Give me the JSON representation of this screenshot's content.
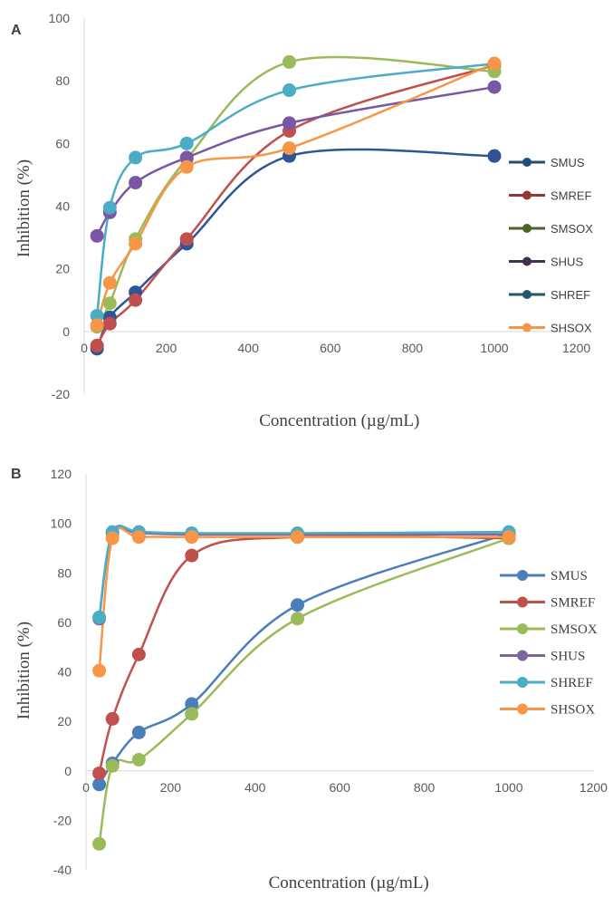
{
  "chart_data": [
    {
      "panel": "A",
      "type": "line",
      "xlabel": "Concentration (µg/mL)",
      "ylabel": "Inhibition (%)",
      "xlim": [
        0,
        1200
      ],
      "ylim": [
        -20,
        100
      ],
      "xticks": [
        0,
        200,
        400,
        600,
        800,
        1000,
        1200
      ],
      "yticks": [
        -20,
        0,
        20,
        40,
        60,
        80,
        100
      ],
      "legend": "right",
      "x": [
        31.25,
        62.5,
        125,
        250,
        500,
        1000
      ],
      "series": [
        {
          "name": "SMUS",
          "color": "#2f5597",
          "values": [
            -5.5,
            4.5,
            12.5,
            28.0,
            56.0,
            56.0
          ]
        },
        {
          "name": "SMREF",
          "color": "#c0504d",
          "values": [
            -4.5,
            2.5,
            10.0,
            29.5,
            64.0,
            85.0
          ]
        },
        {
          "name": "SMSOX",
          "color": "#9bbb59",
          "values": [
            1.5,
            9.0,
            29.5,
            55.0,
            86.0,
            83.0
          ]
        },
        {
          "name": "SHUS",
          "color": "#7a57a4",
          "values": [
            30.5,
            38.0,
            47.5,
            55.5,
            66.5,
            78.0
          ]
        },
        {
          "name": "SHREF",
          "color": "#4bacc6",
          "values": [
            5.0,
            39.5,
            55.5,
            60.0,
            77.0,
            85.5
          ]
        },
        {
          "name": "SHSOX",
          "color": "#f79646",
          "values": [
            2.0,
            15.5,
            28.0,
            52.5,
            58.5,
            85.5
          ]
        }
      ],
      "legend_colors": [
        "#1f4e79",
        "#943634",
        "#4f6228",
        "#403151",
        "#215967",
        "#f79646"
      ]
    },
    {
      "panel": "B",
      "type": "line",
      "xlabel": "Concentration (µg/mL)",
      "ylabel": "Inhibition (%)",
      "xlim": [
        0,
        1200
      ],
      "ylim": [
        -40,
        120
      ],
      "xticks": [
        0,
        200,
        400,
        600,
        800,
        1000,
        1200
      ],
      "yticks": [
        -40,
        -20,
        0,
        20,
        40,
        60,
        80,
        100,
        120
      ],
      "legend": "right",
      "x": [
        31.25,
        62.5,
        125,
        250,
        500,
        1000
      ],
      "series": [
        {
          "name": "SMUS",
          "color": "#4a7ebb",
          "values": [
            -5.5,
            3.0,
            15.5,
            27.0,
            67.0,
            96.0
          ]
        },
        {
          "name": "SMREF",
          "color": "#c0504d",
          "values": [
            -1.0,
            21.0,
            47.0,
            87.0,
            94.5,
            94.0
          ]
        },
        {
          "name": "SMSOX",
          "color": "#9bbb59",
          "values": [
            -29.5,
            2.0,
            4.5,
            23.0,
            61.5,
            94.0
          ]
        },
        {
          "name": "SHUS",
          "color": "#8064a2",
          "values": [
            61.5,
            96.0,
            96.0,
            95.5,
            95.5,
            95.5
          ]
        },
        {
          "name": "SHREF",
          "color": "#4bacc6",
          "values": [
            62.0,
            96.5,
            96.5,
            96.0,
            96.0,
            96.5
          ]
        },
        {
          "name": "SHSOX",
          "color": "#f79646",
          "values": [
            40.5,
            94.0,
            94.5,
            94.5,
            94.5,
            94.5
          ]
        }
      ],
      "legend_colors": [
        "#4a7ebb",
        "#c0504d",
        "#9bbb59",
        "#8064a2",
        "#4bacc6",
        "#f79646"
      ]
    }
  ]
}
